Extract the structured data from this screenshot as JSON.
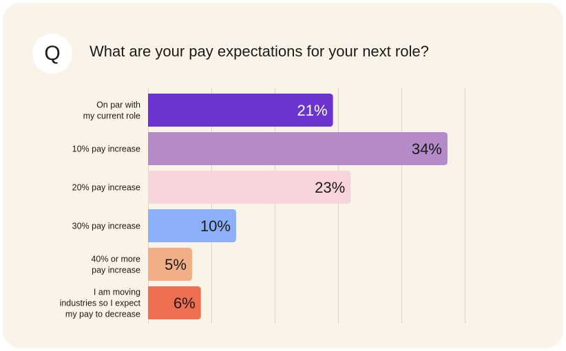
{
  "badge": "Q",
  "title": "What are your pay expectations for your next role?",
  "colors": {
    "background": "#faf3e8",
    "grid": "#ddd3c6",
    "bars": [
      "#6b34cf",
      "#b48ac8",
      "#f7d4dc",
      "#8cb0f8",
      "#f2ae86",
      "#ee6e50"
    ],
    "value_text": [
      "#ffffff",
      "#1a1a1a",
      "#1a1a1a",
      "#1a1a1a",
      "#1a1a1a",
      "#1a1a1a"
    ]
  },
  "chart_data": {
    "type": "bar",
    "orientation": "horizontal",
    "title": "What are your pay expectations for your next role?",
    "categories": [
      [
        "On par with",
        "my current role"
      ],
      [
        "10% pay increase"
      ],
      [
        "20% pay increase"
      ],
      [
        "30% pay increase"
      ],
      [
        "40% or more",
        "pay increase"
      ],
      [
        "I am moving",
        "industries so I expect",
        "my pay to decrease"
      ]
    ],
    "values": [
      21,
      34,
      23,
      10,
      5,
      6
    ],
    "value_labels": [
      "21%",
      "34%",
      "23%",
      "10%",
      "5%",
      "6%"
    ],
    "xlim": [
      0,
      43
    ],
    "grid": true,
    "gridline_step": 7.2
  }
}
